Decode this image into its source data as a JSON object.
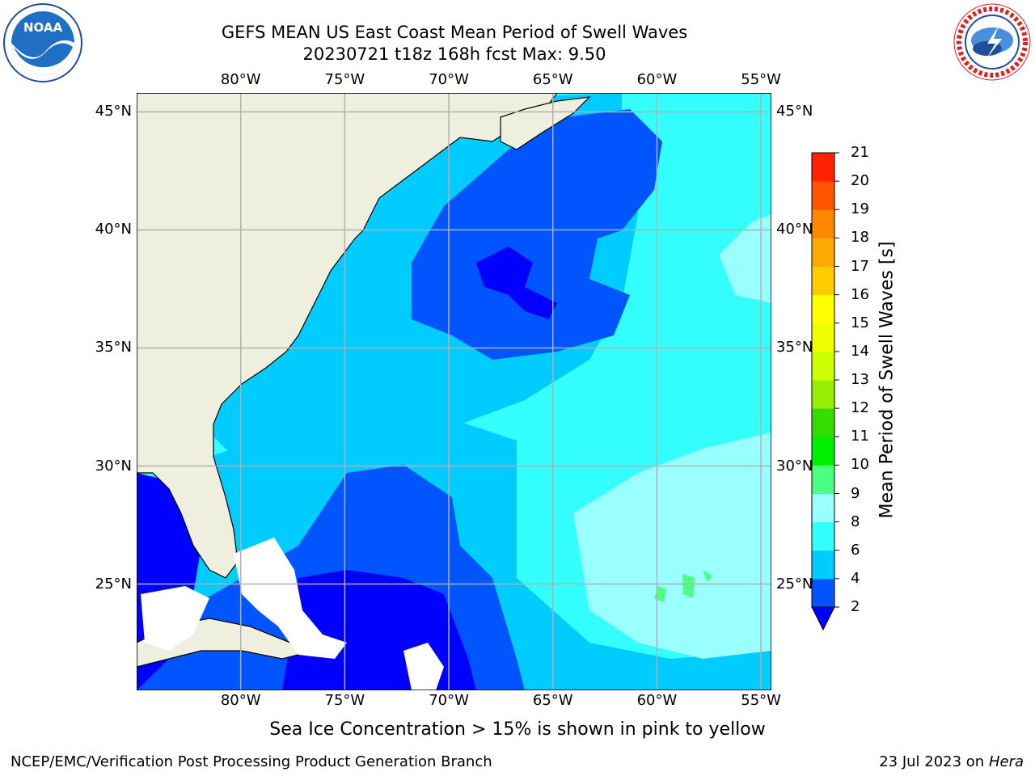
{
  "header": {
    "title_line1": "GEFS MEAN US East Coast Mean Period of Swell Waves",
    "title_line2": "20230721 t18z 168h fcst   Max: 9.50"
  },
  "logos": {
    "left": {
      "name": "noaa-logo",
      "text": "NOAA"
    },
    "right": {
      "name": "national-weather-service-logo",
      "text": "NATIONAL WEATHER SERVICE"
    }
  },
  "map": {
    "longitude_labels": [
      "80°W",
      "75°W",
      "70°W",
      "65°W",
      "60°W",
      "55°W"
    ],
    "latitude_labels": [
      "45°N",
      "40°N",
      "35°N",
      "30°N",
      "25°N"
    ],
    "lon_range": [
      -85,
      -54.5
    ],
    "lat_range": [
      20.5,
      45.8
    ],
    "colors": {
      "land": "#efefdf",
      "grid": "#b0b0b0"
    }
  },
  "colorbar": {
    "label": "Mean Period of Swell Waves [s]",
    "ticks": [
      "2",
      "4",
      "6",
      "8",
      "9",
      "10",
      "11",
      "12",
      "13",
      "14",
      "15",
      "16",
      "17",
      "18",
      "19",
      "20",
      "21"
    ],
    "colors": [
      "#0055ff",
      "#00ccff",
      "#33ffff",
      "#99ffff",
      "#4dff80",
      "#00ee00",
      "#33dd00",
      "#99ee00",
      "#ccff00",
      "#eeff00",
      "#ffff00",
      "#ffcc00",
      "#ffaa00",
      "#ff8800",
      "#ff5500",
      "#ff2200",
      "#ff0000"
    ],
    "extend_color": "#0000ff"
  },
  "notes": {
    "ice": "Sea Ice Concentration > 15% is shown in pink to yellow"
  },
  "footer": {
    "left": "NCEP/EMC/Verification Post Processing Product Generation Branch",
    "date": "23 Jul 2023 on ",
    "machine": "Hera"
  }
}
